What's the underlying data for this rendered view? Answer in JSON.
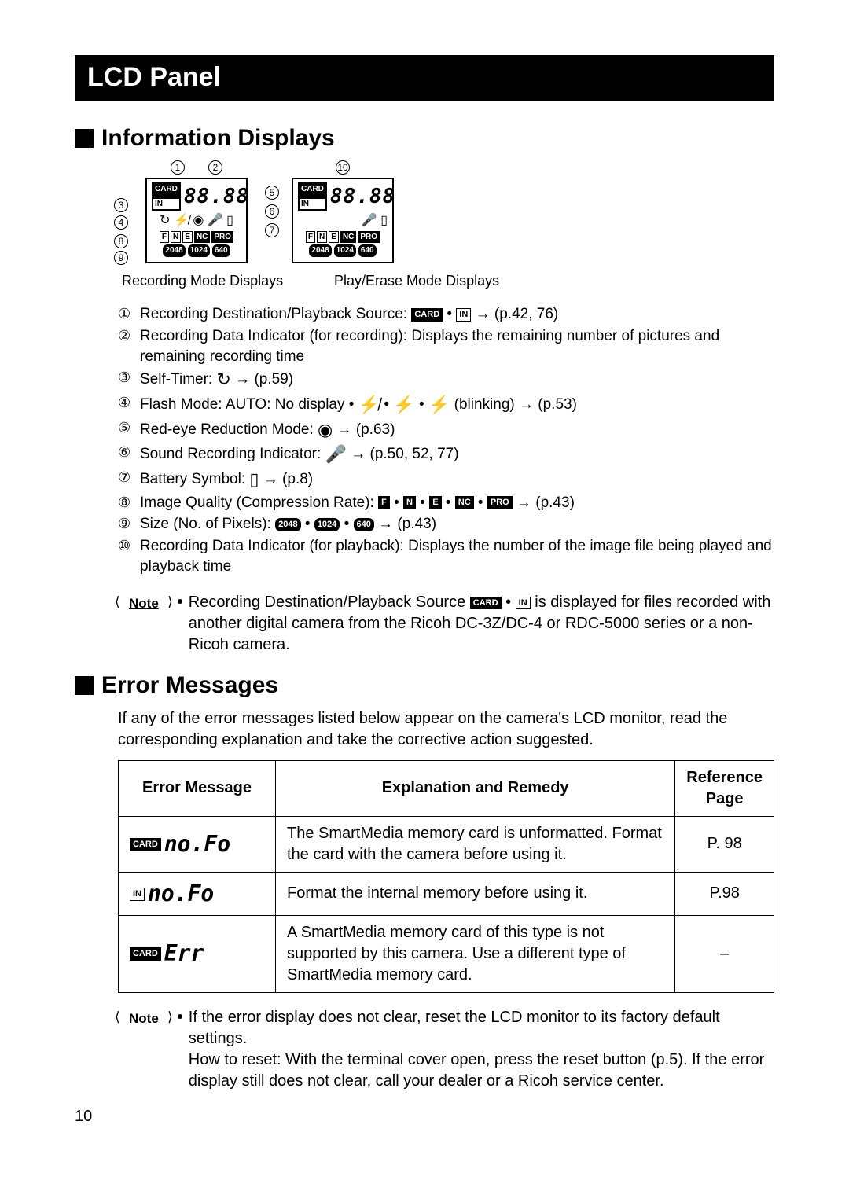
{
  "title": "LCD Panel",
  "section1_heading": "Information Displays",
  "section2_heading": "Error Messages",
  "captions": {
    "recording": "Recording Mode Displays",
    "play": "Play/Erase Mode Displays"
  },
  "defs": [
    {
      "n": "①",
      "text": "Recording Destination/Playback Source: ",
      "suffix": " → (p.42, 76)",
      "icons": [
        "CARD",
        "IN"
      ]
    },
    {
      "n": "②",
      "text": "Recording Data Indicator (for recording): Displays the remaining number of pictures and remaining recording time"
    },
    {
      "n": "③",
      "text": "Self-Timer: ",
      "suffix": " → (p.59)",
      "sym": "↻"
    },
    {
      "n": "④",
      "text": "Flash Mode: AUTO: No display • ",
      "mid": " • ",
      "end": " (blinking) → (p.53)",
      "syms": [
        "⚡̸",
        "⚡",
        "⚡"
      ]
    },
    {
      "n": "⑤",
      "text": "Red-eye Reduction Mode: ",
      "suffix": " → (p.63)",
      "sym": "◉"
    },
    {
      "n": "⑥",
      "text": "Sound Recording Indicator: ",
      "suffix": " → (p.50, 52, 77)",
      "sym": "🎤"
    },
    {
      "n": "⑦",
      "text": "Battery Symbol: ",
      "suffix": " → (p.8)",
      "sym": "▯"
    },
    {
      "n": "⑧",
      "text": "Image Quality (Compression Rate): ",
      "suffix": " → (p.43)",
      "chips": [
        "F",
        "N",
        "E",
        "NC",
        "PRO"
      ]
    },
    {
      "n": "⑨",
      "text": "Size (No. of Pixels): ",
      "suffix": " → (p.43)",
      "sizechips": [
        "2048",
        "1024",
        "640"
      ]
    },
    {
      "n": "⑩",
      "text": "Recording Data Indicator (for playback): Displays the number of the image file being played and playback time"
    }
  ],
  "note1": "Recording Destination/Playback Source [CARD] • [IN] is displayed for files recorded with another digital camera from the Ricoh DC-3Z/DC-4 or RDC-5000 series or a non-Ricoh camera.",
  "note1_pre": "Recording Destination/Playback Source ",
  "note1_post": " is displayed for files recorded with another digital camera from the Ricoh DC-3Z/DC-4 or RDC-5000 series or a non-Ricoh camera.",
  "error_intro": "If any of the error messages listed below appear on the camera's LCD monitor, read the corresponding explanation and take the corrective action suggested.",
  "table": {
    "headers": [
      "Error Message",
      "Explanation and Remedy",
      "Reference Page"
    ],
    "rows": [
      {
        "icon": "CARD",
        "msg": "no.Fo",
        "exp": "The SmartMedia memory card is unformatted. Format the card with the camera before using it.",
        "ref": "P. 98"
      },
      {
        "icon": "IN",
        "msg": "no.Fo",
        "exp": "Format the internal memory before using it.",
        "ref": "P.98"
      },
      {
        "icon": "CARD",
        "msg": "Err",
        "exp": "A SmartMedia memory card of this type is not supported by this camera. Use a different type of SmartMedia memory card.",
        "ref": "–"
      }
    ]
  },
  "note2_line1": "If the error display does not clear, reset the LCD monitor to its factory default settings.",
  "note2_line2": "How to reset: With the terminal cover open, press the reset button (p.5). If the error display still does not clear, call your dealer or a Ricoh service center.",
  "page_number": "10",
  "note_label": "Note",
  "lcd": {
    "seg_value": "88.88",
    "card_label": "CARD",
    "in_label": "IN",
    "quality_chips": [
      "F",
      "N",
      "E",
      "NC",
      "PRO"
    ],
    "quality_dark_indices": [
      3,
      4
    ],
    "size_chips": [
      "2048",
      "1024",
      "640"
    ],
    "symbol_row": "↻ ⚡̸ ◉ 🎤 ▯"
  },
  "callout_labels": {
    "top1": "1",
    "top2": "2",
    "right1": "5",
    "right2": "6",
    "right3": "7",
    "left1": "3",
    "left2": "4",
    "bl1": "8",
    "bl2": "9",
    "play_top": "10"
  }
}
